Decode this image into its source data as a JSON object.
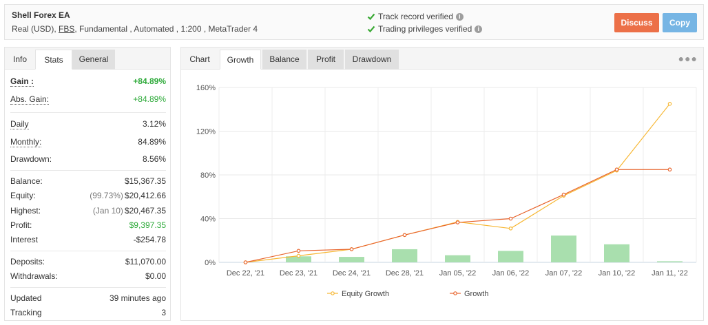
{
  "header": {
    "title": "Shell Forex EA",
    "account_type": "Real (USD),",
    "broker": "FBS",
    "details": ", Fundamental , Automated , 1:200 , MetaTrader 4",
    "verified_track": "Track record verified",
    "verified_trading": "Trading privileges verified",
    "discuss_label": "Discuss",
    "copy_label": "Copy"
  },
  "left_tabs": [
    "Info",
    "Stats",
    "General"
  ],
  "stats": {
    "gain": {
      "label": "Gain :",
      "value": "+84.89%"
    },
    "abs_gain": {
      "label": "Abs. Gain:",
      "value": "+84.89%"
    },
    "daily": {
      "label": "Daily",
      "value": "3.12%"
    },
    "monthly": {
      "label": "Monthly:",
      "value": "84.89%"
    },
    "drawdown": {
      "label": "Drawdown:",
      "value": "8.56%"
    },
    "balance": {
      "label": "Balance:",
      "value": "$15,367.35"
    },
    "equity": {
      "label": "Equity:",
      "note": "(99.73%)",
      "value": "$20,412.66"
    },
    "highest": {
      "label": "Highest:",
      "note": "(Jan 10)",
      "value": "$20,467.35"
    },
    "profit": {
      "label": "Profit:",
      "value": "$9,397.35"
    },
    "interest": {
      "label": "Interest",
      "value": "-$254.78"
    },
    "deposits": {
      "label": "Deposits:",
      "value": "$11,070.00"
    },
    "withdrawals": {
      "label": "Withdrawals:",
      "value": "$0.00"
    },
    "updated": {
      "label": "Updated",
      "value": "39 minutes ago"
    },
    "tracking": {
      "label": "Tracking",
      "value": "3"
    }
  },
  "chart_tabs": [
    "Chart",
    "Growth",
    "Balance",
    "Profit",
    "Drawdown"
  ],
  "colors": {
    "equity_line": "#f7b733",
    "growth_line": "#e8652e",
    "bars": "#a9dfae",
    "green": "#2eaa3a"
  },
  "chart_data": {
    "type": "line",
    "categories": [
      "Dec 22, '21",
      "Dec 23, '21",
      "Dec 24, '21",
      "Dec 28, '21",
      "Jan 05, '22",
      "Jan 06, '22",
      "Jan 07, '22",
      "Jan 10, '22",
      "Jan 11, '22"
    ],
    "series": [
      {
        "name": "Equity Growth",
        "values": [
          0,
          6,
          12,
          25,
          37,
          31,
          61,
          84,
          145
        ]
      },
      {
        "name": "Growth",
        "values": [
          0,
          10.5,
          12,
          25,
          36.5,
          40,
          62,
          84.89,
          84.89
        ]
      }
    ],
    "bars": [
      0,
      5.5,
      5,
      12,
      6.5,
      10.5,
      24.5,
      16.5,
      1
    ],
    "y_ticks": [
      "0%",
      "40%",
      "80%",
      "120%",
      "160%"
    ],
    "ylim": [
      0,
      160
    ],
    "grid": true,
    "legend": "bottom"
  }
}
